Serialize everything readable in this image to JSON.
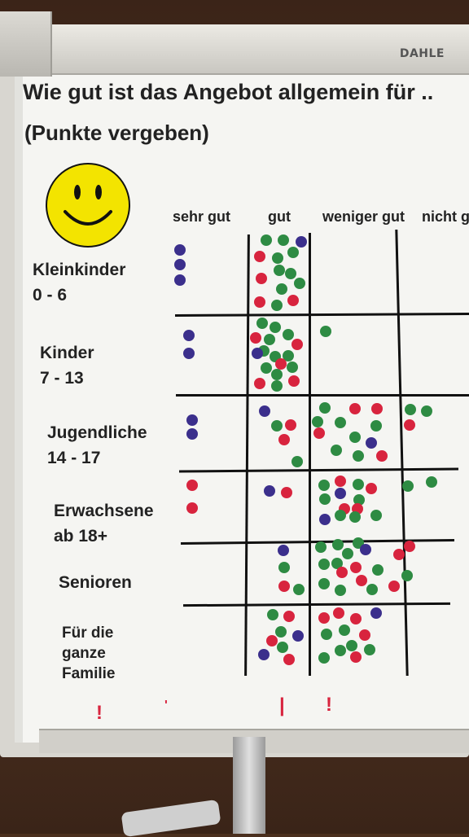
{
  "brand": "DAHLE",
  "title": "Wie gut ist das Angebot  allgemein für ..",
  "subtitle": "(Punkte vergeben)",
  "smiley": "smiley-icon",
  "columns": [
    "sehr gut",
    "gut",
    "weniger gut",
    "nicht g"
  ],
  "rows": [
    {
      "line1": "Kleinkinder",
      "line2": "0 - 6",
      "line3": ""
    },
    {
      "line1": "Kinder",
      "line2": "7 - 13",
      "line3": ""
    },
    {
      "line1": "Jugendliche",
      "line2": "14 - 17",
      "line3": ""
    },
    {
      "line1": "Erwachsene",
      "line2": "ab 18+",
      "line3": ""
    },
    {
      "line1": "Senioren",
      "line2": "",
      "line3": ""
    },
    {
      "line1": "Für die",
      "line2": "ganze",
      "line3": "Familie"
    }
  ],
  "colors": {
    "blue": "#3b2f8c",
    "red": "#d8243e",
    "green": "#2e8b43"
  },
  "dots": [
    [
      "blue",
      221,
      307
    ],
    [
      "blue",
      221,
      325
    ],
    [
      "blue",
      221,
      344
    ],
    [
      "green",
      327,
      295
    ],
    [
      "green",
      348,
      295
    ],
    [
      "blue",
      370,
      297
    ],
    [
      "red",
      319,
      315
    ],
    [
      "green",
      341,
      317
    ],
    [
      "green",
      360,
      310
    ],
    [
      "red",
      321,
      342
    ],
    [
      "green",
      343,
      332
    ],
    [
      "green",
      357,
      336
    ],
    [
      "green",
      368,
      348
    ],
    [
      "green",
      346,
      355
    ],
    [
      "red",
      319,
      371
    ],
    [
      "green",
      340,
      375
    ],
    [
      "red",
      360,
      369
    ],
    [
      "blue",
      232,
      412
    ],
    [
      "blue",
      232,
      434
    ],
    [
      "green",
      322,
      397
    ],
    [
      "green",
      338,
      402
    ],
    [
      "red",
      314,
      415
    ],
    [
      "green",
      331,
      417
    ],
    [
      "green",
      354,
      411
    ],
    [
      "green",
      324,
      431
    ],
    [
      "red",
      365,
      423
    ],
    [
      "green",
      338,
      438
    ],
    [
      "blue",
      316,
      434
    ],
    [
      "green",
      354,
      437
    ],
    [
      "green",
      327,
      452
    ],
    [
      "red",
      345,
      447
    ],
    [
      "green",
      359,
      451
    ],
    [
      "red",
      319,
      471
    ],
    [
      "green",
      340,
      460
    ],
    [
      "red",
      361,
      468
    ],
    [
      "green",
      340,
      474
    ],
    [
      "green",
      400,
      407
    ],
    [
      "blue",
      236,
      516
    ],
    [
      "blue",
      236,
      533
    ],
    [
      "blue",
      325,
      505
    ],
    [
      "green",
      340,
      523
    ],
    [
      "red",
      357,
      522
    ],
    [
      "red",
      349,
      540
    ],
    [
      "green",
      365,
      567
    ],
    [
      "green",
      399,
      501
    ],
    [
      "red",
      436,
      502
    ],
    [
      "red",
      463,
      502
    ],
    [
      "green",
      390,
      518
    ],
    [
      "green",
      418,
      519
    ],
    [
      "red",
      392,
      532
    ],
    [
      "green",
      436,
      537
    ],
    [
      "green",
      462,
      523
    ],
    [
      "blue",
      456,
      544
    ],
    [
      "green",
      413,
      553
    ],
    [
      "green",
      440,
      560
    ],
    [
      "red",
      469,
      560
    ],
    [
      "green",
      504,
      503
    ],
    [
      "green",
      524,
      505
    ],
    [
      "red",
      503,
      522
    ],
    [
      "red",
      236,
      596
    ],
    [
      "red",
      236,
      624
    ],
    [
      "blue",
      331,
      603
    ],
    [
      "red",
      352,
      605
    ],
    [
      "green",
      398,
      596
    ],
    [
      "red",
      418,
      591
    ],
    [
      "green",
      440,
      595
    ],
    [
      "red",
      456,
      600
    ],
    [
      "green",
      399,
      613
    ],
    [
      "blue",
      418,
      606
    ],
    [
      "green",
      441,
      614
    ],
    [
      "red",
      423,
      625
    ],
    [
      "red",
      439,
      625
    ],
    [
      "green",
      462,
      633
    ],
    [
      "blue",
      399,
      638
    ],
    [
      "green",
      418,
      633
    ],
    [
      "green",
      436,
      635
    ],
    [
      "green",
      501,
      597
    ],
    [
      "green",
      530,
      592
    ],
    [
      "blue",
      348,
      676
    ],
    [
      "green",
      349,
      697
    ],
    [
      "red",
      349,
      720
    ],
    [
      "green",
      367,
      724
    ],
    [
      "green",
      394,
      672
    ],
    [
      "green",
      415,
      669
    ],
    [
      "green",
      440,
      667
    ],
    [
      "blue",
      449,
      675
    ],
    [
      "green",
      398,
      693
    ],
    [
      "green",
      414,
      692
    ],
    [
      "red",
      437,
      697
    ],
    [
      "green",
      427,
      680
    ],
    [
      "green",
      398,
      717
    ],
    [
      "red",
      420,
      703
    ],
    [
      "green",
      464,
      700
    ],
    [
      "red",
      444,
      713
    ],
    [
      "green",
      418,
      725
    ],
    [
      "green",
      457,
      724
    ],
    [
      "red",
      503,
      671
    ],
    [
      "red",
      490,
      681
    ],
    [
      "green",
      500,
      707
    ],
    [
      "red",
      484,
      720
    ],
    [
      "green",
      335,
      755
    ],
    [
      "red",
      355,
      757
    ],
    [
      "green",
      345,
      776
    ],
    [
      "blue",
      366,
      781
    ],
    [
      "red",
      334,
      787
    ],
    [
      "green",
      347,
      795
    ],
    [
      "blue",
      324,
      804
    ],
    [
      "red",
      355,
      810
    ],
    [
      "red",
      398,
      759
    ],
    [
      "red",
      416,
      753
    ],
    [
      "red",
      437,
      760
    ],
    [
      "blue",
      462,
      753
    ],
    [
      "green",
      423,
      774
    ],
    [
      "green",
      401,
      779
    ],
    [
      "red",
      448,
      780
    ],
    [
      "green",
      418,
      799
    ],
    [
      "green",
      432,
      793
    ],
    [
      "green",
      454,
      798
    ],
    [
      "green",
      398,
      808
    ],
    [
      "red",
      437,
      807
    ]
  ],
  "ticks": [
    {
      "text": "!"
    },
    {
      "text": "'"
    },
    {
      "text": "|"
    },
    {
      "text": "!"
    }
  ]
}
